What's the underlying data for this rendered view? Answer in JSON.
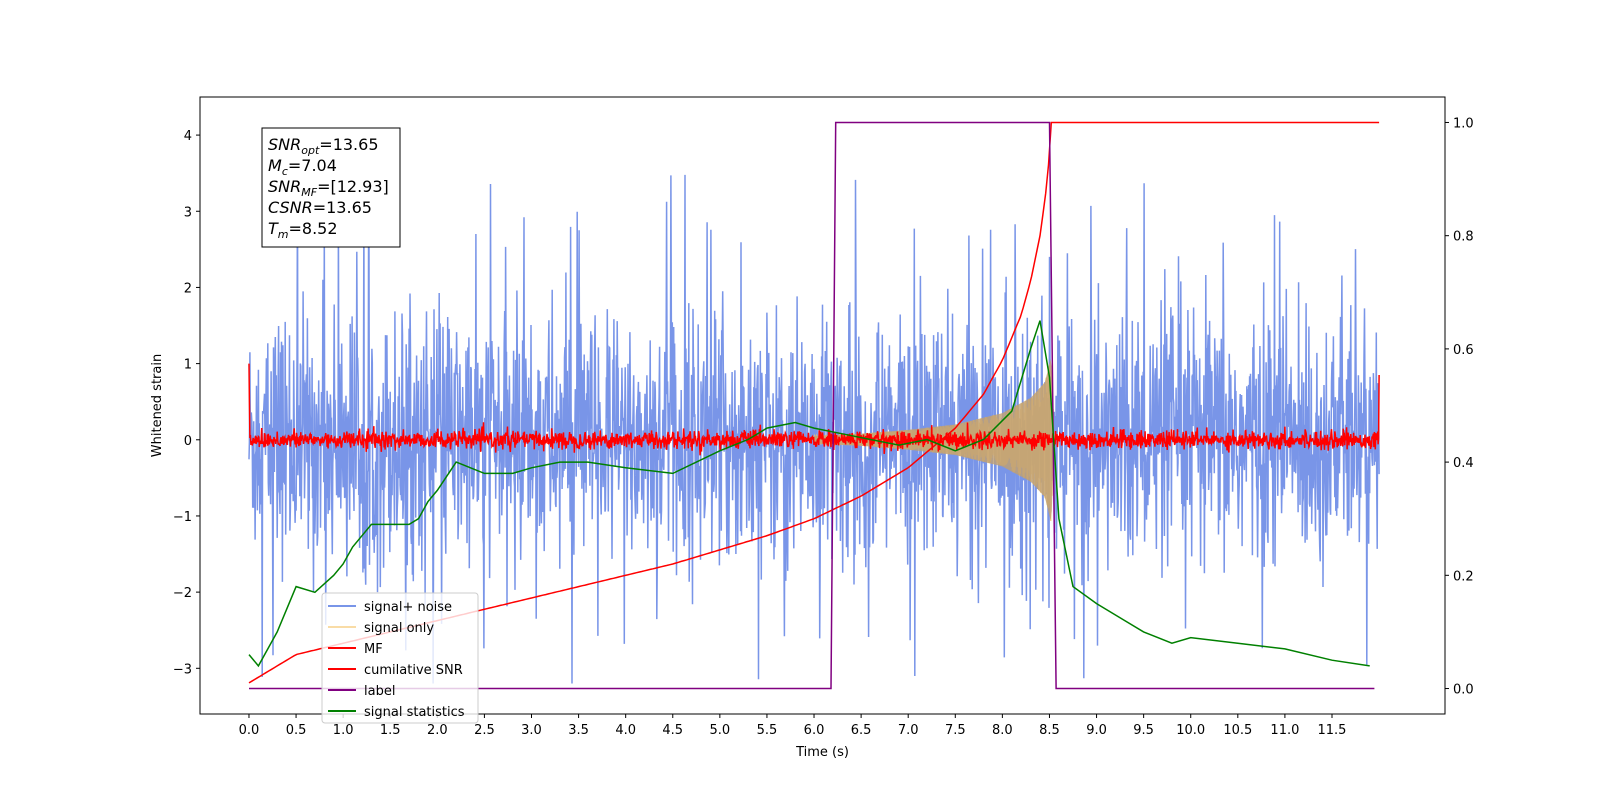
{
  "chart_data": {
    "type": "line",
    "xlabel": "Time (s)",
    "ylabel": "Whitened strain",
    "xlim": [
      -0.52,
      12.7
    ],
    "ylim": [
      -3.6,
      4.5
    ],
    "y2lim": [
      -0.045,
      1.045
    ],
    "x_ticks": [
      0.0,
      0.5,
      1.0,
      1.5,
      2.0,
      2.5,
      3.0,
      3.5,
      4.0,
      4.5,
      5.0,
      5.5,
      6.0,
      6.5,
      7.0,
      7.5,
      8.0,
      8.5,
      9.0,
      9.5,
      10.0,
      10.5,
      11.0,
      11.5
    ],
    "x_tick_labels": [
      "0.0",
      "0.5",
      "1.0",
      "1.5",
      "2.0",
      "2.5",
      "3.0",
      "3.5",
      "4.0",
      "4.5",
      "5.0",
      "5.5",
      "6.0",
      "6.5",
      "7.0",
      "7.5",
      "8.0",
      "8.5",
      "9.0",
      "9.5",
      "10.0",
      "10.5",
      "11.0",
      "11.5"
    ],
    "y_ticks": [
      -3,
      -2,
      -1,
      0,
      1,
      2,
      3,
      4
    ],
    "y_tick_labels": [
      "−3",
      "−2",
      "−1",
      "0",
      "1",
      "2",
      "3",
      "4"
    ],
    "y2_ticks": [
      0.0,
      0.2,
      0.4,
      0.6,
      0.8,
      1.0
    ],
    "y2_tick_labels": [
      "0.0",
      "0.2",
      "0.4",
      "0.6",
      "0.8",
      "1.0"
    ],
    "legend_position": "lower-left",
    "grid": false,
    "series": [
      {
        "name": "signal+ noise",
        "axis": "left",
        "color": "#6a89e5",
        "kind": "noise-band",
        "x": [
          0.0,
          12.0
        ],
        "typical_amplitude": 1.5,
        "max": 4.15,
        "min": -3.2
      },
      {
        "name": "signal only",
        "axis": "left",
        "color": "#f5c46a",
        "kind": "chirp-envelope",
        "x": [
          6.0,
          6.5,
          7.0,
          7.5,
          8.0,
          8.3,
          8.45,
          8.52,
          8.55
        ],
        "amplitude": [
          0.05,
          0.08,
          0.13,
          0.2,
          0.35,
          0.55,
          0.75,
          1.1,
          0.0
        ]
      },
      {
        "name": "MF",
        "axis": "left",
        "color": "#ff0000",
        "kind": "noise-band",
        "x": [
          0.0,
          12.0
        ],
        "typical_amplitude": 0.1,
        "edge_values": [
          1.0,
          0.85
        ]
      },
      {
        "name": "cumilative SNR",
        "axis": "right",
        "color": "#ff0000",
        "x": [
          0.0,
          0.5,
          1.0,
          1.5,
          2.0,
          2.5,
          3.0,
          3.5,
          4.0,
          4.5,
          5.0,
          5.5,
          6.0,
          6.5,
          7.0,
          7.5,
          7.8,
          8.0,
          8.2,
          8.3,
          8.4,
          8.48,
          8.52,
          12.0
        ],
        "values": [
          0.01,
          0.06,
          0.08,
          0.1,
          0.12,
          0.14,
          0.16,
          0.18,
          0.2,
          0.22,
          0.245,
          0.27,
          0.3,
          0.34,
          0.39,
          0.46,
          0.52,
          0.58,
          0.66,
          0.72,
          0.8,
          0.9,
          1.0,
          1.0
        ]
      },
      {
        "name": "label",
        "axis": "right",
        "color": "#800080",
        "x": [
          0.0,
          6.18,
          6.23,
          8.5,
          8.57,
          11.95
        ],
        "values": [
          0.0,
          0.0,
          1.0,
          1.0,
          0.0,
          0.0
        ]
      },
      {
        "name": "signal statistics",
        "axis": "right",
        "color": "#008000",
        "x": [
          0.0,
          0.1,
          0.3,
          0.5,
          0.7,
          0.9,
          1.0,
          1.1,
          1.2,
          1.3,
          1.5,
          1.7,
          1.8,
          1.9,
          2.0,
          2.2,
          2.5,
          2.8,
          3.0,
          3.3,
          3.6,
          4.0,
          4.5,
          5.0,
          5.3,
          5.5,
          5.8,
          6.0,
          6.3,
          6.6,
          6.9,
          7.2,
          7.5,
          7.8,
          8.1,
          8.3,
          8.4,
          8.5,
          8.6,
          8.75,
          9.0,
          9.3,
          9.5,
          9.8,
          10.0,
          10.5,
          11.0,
          11.5,
          11.9
        ],
        "values": [
          0.06,
          0.04,
          0.1,
          0.18,
          0.17,
          0.2,
          0.22,
          0.25,
          0.27,
          0.29,
          0.29,
          0.29,
          0.3,
          0.33,
          0.35,
          0.4,
          0.38,
          0.38,
          0.39,
          0.4,
          0.4,
          0.39,
          0.38,
          0.42,
          0.44,
          0.46,
          0.47,
          0.46,
          0.45,
          0.44,
          0.43,
          0.44,
          0.42,
          0.44,
          0.49,
          0.6,
          0.65,
          0.55,
          0.3,
          0.18,
          0.15,
          0.12,
          0.1,
          0.08,
          0.09,
          0.08,
          0.07,
          0.05,
          0.04
        ]
      }
    ],
    "annotation_lines": [
      {
        "prefix": "SNR",
        "sub": "opt",
        "value": "=13.65"
      },
      {
        "prefix": "M",
        "sub": "c",
        "value": "=7.04"
      },
      {
        "prefix": "SNR",
        "sub": "MF",
        "value": "=[12.93]"
      },
      {
        "prefix": "CSNR",
        "sub": "",
        "value": "=13.65"
      },
      {
        "prefix": "T",
        "sub": "m",
        "value": "=8.52"
      }
    ]
  }
}
